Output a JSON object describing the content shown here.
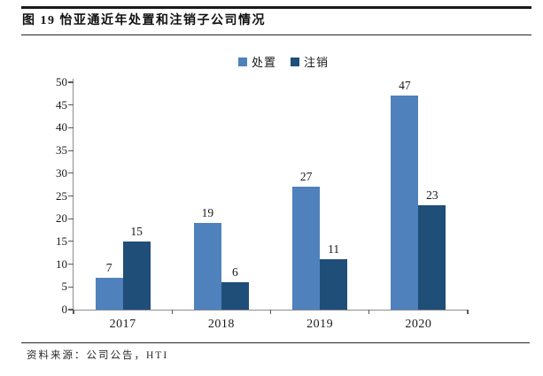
{
  "header": {
    "title": "图 19 怡亚通近年处置和注销子公司情况"
  },
  "footer": {
    "source": "资料来源：公司公告，HTI"
  },
  "chart_data": {
    "type": "bar",
    "title": "图 19 怡亚通近年处置和注销子公司情况",
    "categories": [
      "2017",
      "2018",
      "2019",
      "2020"
    ],
    "series": [
      {
        "name": "处置",
        "color": "#4F81BD",
        "values": [
          7,
          19,
          27,
          47
        ]
      },
      {
        "name": "注销",
        "color": "#1F4E79",
        "values": [
          15,
          6,
          11,
          23
        ]
      }
    ],
    "ylim": [
      0,
      50
    ],
    "ytick_step": 5,
    "yticks": [
      0,
      5,
      10,
      15,
      20,
      25,
      30,
      35,
      40,
      45,
      50
    ],
    "legend_position": "top-center",
    "grid": false,
    "bar_value_labels": true,
    "axis_color": "#8C8C8C",
    "tick_color": "#595959",
    "label_color": "#1A1A1A"
  }
}
